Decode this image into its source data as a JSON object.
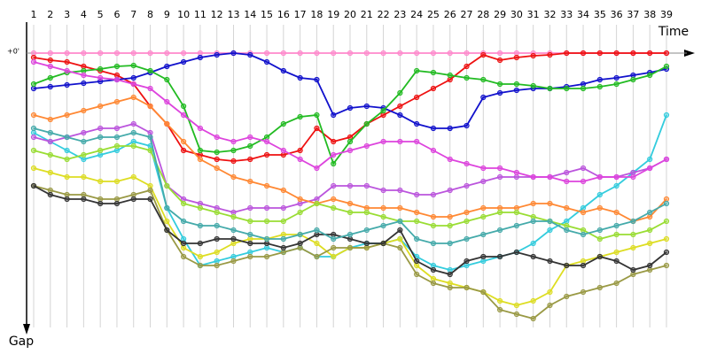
{
  "chart_data": {
    "type": "line",
    "x_label": "Time",
    "y_label": "Gap",
    "categories": [
      "1",
      "2",
      "3",
      "4",
      "5",
      "6",
      "7",
      "8",
      "9",
      "10",
      "11",
      "12",
      "13",
      "14",
      "15",
      "16",
      "17",
      "18",
      "19",
      "20",
      "21",
      "22",
      "23",
      "24",
      "25",
      "26",
      "27",
      "28",
      "29",
      "30",
      "31",
      "32",
      "33",
      "34",
      "35",
      "36",
      "37",
      "38",
      "39"
    ],
    "ylim": [
      0,
      310
    ],
    "yticks": [
      {
        "value": 0,
        "label": "+0'"
      }
    ],
    "y_inverted": true,
    "grid": true,
    "series": [
      {
        "color": "#ff88cc",
        "values": [
          0,
          0,
          0,
          0,
          0,
          0,
          0,
          0,
          0,
          0,
          0,
          0,
          0,
          0,
          0,
          0,
          0,
          0,
          0,
          0,
          0,
          0,
          0,
          0,
          0,
          0,
          0,
          0,
          0,
          0,
          0,
          0,
          0,
          0,
          0,
          0,
          0,
          0,
          0
        ]
      },
      {
        "color": "#ee1111",
        "values": [
          5,
          8,
          10,
          15,
          20,
          25,
          35,
          60,
          80,
          110,
          115,
          120,
          122,
          120,
          115,
          115,
          110,
          85,
          100,
          95,
          80,
          70,
          60,
          50,
          40,
          30,
          15,
          2,
          8,
          5,
          3,
          2,
          0,
          0,
          0,
          0,
          0,
          0,
          0
        ]
      },
      {
        "color": "#1111cc",
        "values": [
          40,
          38,
          36,
          34,
          32,
          30,
          28,
          22,
          15,
          10,
          5,
          2,
          0,
          2,
          10,
          20,
          28,
          30,
          70,
          62,
          60,
          62,
          70,
          80,
          85,
          85,
          82,
          50,
          45,
          42,
          40,
          40,
          38,
          35,
          30,
          28,
          25,
          22,
          18
        ]
      },
      {
        "color": "#22bb22",
        "values": [
          35,
          28,
          22,
          20,
          18,
          15,
          14,
          20,
          30,
          60,
          110,
          112,
          110,
          105,
          95,
          80,
          72,
          70,
          125,
          100,
          80,
          65,
          45,
          20,
          22,
          25,
          28,
          30,
          35,
          35,
          37,
          40,
          40,
          40,
          38,
          35,
          30,
          25,
          15
        ]
      },
      {
        "color": "#33ccdd",
        "values": [
          90,
          100,
          110,
          120,
          115,
          110,
          100,
          105,
          175,
          210,
          240,
          235,
          230,
          225,
          220,
          225,
          220,
          230,
          230,
          220,
          215,
          215,
          210,
          230,
          240,
          245,
          240,
          235,
          230,
          225,
          215,
          200,
          190,
          175,
          160,
          150,
          135,
          120,
          70
        ]
      },
      {
        "color": "#dddd22",
        "values": [
          130,
          135,
          140,
          140,
          145,
          145,
          140,
          150,
          190,
          220,
          230,
          225,
          215,
          210,
          210,
          205,
          205,
          215,
          230,
          220,
          220,
          215,
          210,
          240,
          255,
          260,
          265,
          270,
          280,
          285,
          280,
          270,
          240,
          235,
          230,
          225,
          220,
          215,
          210
        ]
      },
      {
        "color": "#999944",
        "values": [
          150,
          155,
          160,
          160,
          165,
          165,
          160,
          155,
          200,
          230,
          240,
          240,
          235,
          230,
          230,
          225,
          220,
          230,
          220,
          220,
          220,
          215,
          220,
          250,
          260,
          265,
          265,
          270,
          290,
          295,
          300,
          285,
          275,
          270,
          265,
          260,
          250,
          245,
          240
        ]
      },
      {
        "color": "#bb55dd",
        "values": [
          95,
          100,
          95,
          90,
          85,
          85,
          80,
          90,
          150,
          165,
          170,
          175,
          180,
          175,
          175,
          175,
          170,
          165,
          150,
          150,
          150,
          155,
          155,
          160,
          160,
          155,
          150,
          145,
          140,
          140,
          140,
          140,
          135,
          130,
          140,
          140,
          135,
          130,
          120
        ]
      },
      {
        "color": "#333333",
        "values": [
          150,
          160,
          165,
          165,
          170,
          170,
          165,
          165,
          200,
          215,
          215,
          210,
          210,
          215,
          215,
          220,
          215,
          205,
          205,
          210,
          215,
          215,
          200,
          235,
          245,
          250,
          235,
          230,
          230,
          225,
          230,
          235,
          240,
          240,
          230,
          235,
          245,
          240,
          225
        ]
      },
      {
        "color": "#ff8833",
        "values": [
          70,
          75,
          70,
          65,
          60,
          55,
          50,
          60,
          80,
          100,
          120,
          130,
          140,
          145,
          150,
          155,
          165,
          170,
          165,
          170,
          175,
          175,
          175,
          180,
          185,
          185,
          180,
          175,
          175,
          175,
          170,
          170,
          175,
          180,
          175,
          180,
          190,
          185,
          165
        ]
      },
      {
        "color": "#99dd33",
        "values": [
          110,
          115,
          120,
          115,
          110,
          105,
          105,
          110,
          150,
          170,
          175,
          180,
          185,
          190,
          190,
          190,
          180,
          170,
          175,
          180,
          180,
          185,
          190,
          190,
          195,
          195,
          190,
          185,
          180,
          180,
          185,
          190,
          195,
          200,
          210,
          205,
          205,
          200,
          190
        ]
      },
      {
        "color": "#dd44dd",
        "values": [
          10,
          15,
          20,
          25,
          28,
          30,
          35,
          40,
          55,
          70,
          85,
          95,
          100,
          95,
          100,
          110,
          120,
          130,
          115,
          110,
          105,
          100,
          100,
          100,
          110,
          120,
          125,
          130,
          130,
          135,
          140,
          140,
          145,
          145,
          140,
          140,
          140,
          130,
          120
        ]
      },
      {
        "color": "#44aaaa",
        "values": [
          85,
          90,
          95,
          100,
          95,
          95,
          90,
          95,
          175,
          190,
          195,
          195,
          200,
          205,
          210,
          210,
          205,
          200,
          210,
          205,
          200,
          195,
          190,
          210,
          215,
          215,
          210,
          205,
          200,
          195,
          190,
          190,
          200,
          205,
          200,
          195,
          190,
          180,
          170
        ]
      }
    ]
  }
}
